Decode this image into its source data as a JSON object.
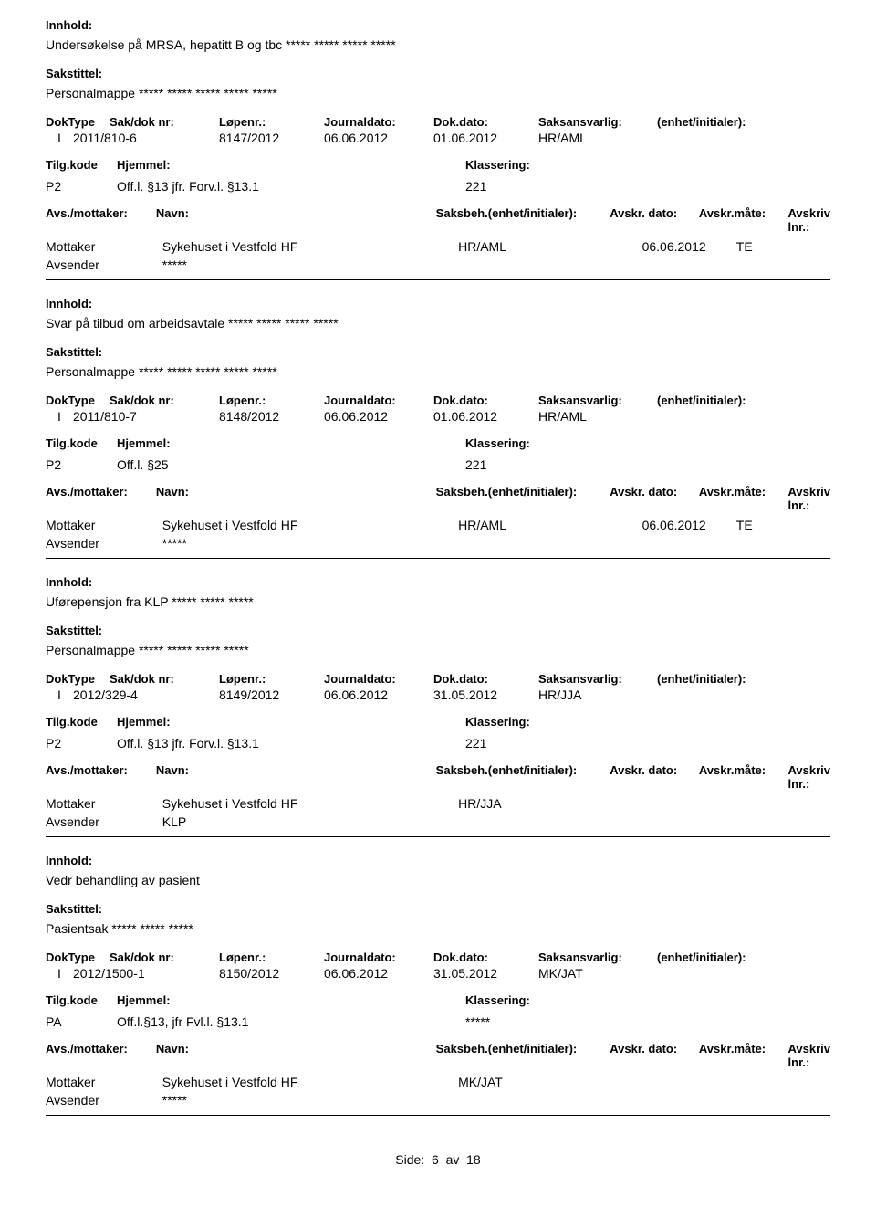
{
  "labels": {
    "innhold": "Innhold:",
    "sakstittel": "Sakstittel:",
    "doktype": "DokType",
    "sakdok": "Sak/dok nr:",
    "lopenr": "Løpenr.:",
    "journaldato": "Journaldato:",
    "dokdato": "Dok.dato:",
    "saksansvarlig": "Saksansvarlig:",
    "enhet": "(enhet/initialer):",
    "tilgkode": "Tilg.kode",
    "hjemmel": "Hjemmel:",
    "klassering": "Klassering:",
    "avsmottaker": "Avs./mottaker:",
    "navn": "Navn:",
    "saksbeh": "Saksbeh.(enhet/initialer):",
    "avskrdato": "Avskr. dato:",
    "avskrmaate": "Avskr.måte:",
    "avskrivlnr": "Avskriv lnr.:",
    "mottaker": "Mottaker",
    "avsender": "Avsender"
  },
  "records": [
    {
      "innhold": "Undersøkelse på MRSA, hepatitt B og tbc ***** ***** ***** *****",
      "sakstittel": "Personalmappe ***** ***** ***** ***** *****",
      "doktype": "I",
      "sakdok": "2011/810-6",
      "lopenr": "8147/2012",
      "journaldato": "06.06.2012",
      "dokdato": "01.06.2012",
      "saksansvarlig": "HR/AML",
      "tilgkode": "P2",
      "hjemmel": "Off.l. §13  jfr. Forv.l. §13.1",
      "klassering": "221",
      "parties": [
        {
          "role": "Mottaker",
          "navn": "Sykehuset i Vestfold HF",
          "saksbeh": "HR/AML",
          "avskrdato": "06.06.2012",
          "avskrmaate": "TE"
        },
        {
          "role": "Avsender",
          "navn": "*****",
          "saksbeh": "",
          "avskrdato": "",
          "avskrmaate": ""
        }
      ]
    },
    {
      "innhold": "Svar på tilbud om arbeidsavtale ***** ***** ***** *****",
      "sakstittel": "Personalmappe ***** ***** ***** ***** *****",
      "doktype": "I",
      "sakdok": "2011/810-7",
      "lopenr": "8148/2012",
      "journaldato": "06.06.2012",
      "dokdato": "01.06.2012",
      "saksansvarlig": "HR/AML",
      "tilgkode": "P2",
      "hjemmel": "Off.l. §25",
      "klassering": "221",
      "parties": [
        {
          "role": "Mottaker",
          "navn": "Sykehuset i Vestfold HF",
          "saksbeh": "HR/AML",
          "avskrdato": "06.06.2012",
          "avskrmaate": "TE"
        },
        {
          "role": "Avsender",
          "navn": "*****",
          "saksbeh": "",
          "avskrdato": "",
          "avskrmaate": ""
        }
      ]
    },
    {
      "innhold": "Uførepensjon fra KLP ***** ***** *****",
      "sakstittel": "Personalmappe ***** ***** ***** *****",
      "doktype": "I",
      "sakdok": "2012/329-4",
      "lopenr": "8149/2012",
      "journaldato": "06.06.2012",
      "dokdato": "31.05.2012",
      "saksansvarlig": "HR/JJA",
      "tilgkode": "P2",
      "hjemmel": "Off.l. §13  jfr. Forv.l. §13.1",
      "klassering": "221",
      "parties": [
        {
          "role": "Mottaker",
          "navn": "Sykehuset i Vestfold HF",
          "saksbeh": "HR/JJA",
          "avskrdato": "",
          "avskrmaate": ""
        },
        {
          "role": "Avsender",
          "navn": "KLP",
          "saksbeh": "",
          "avskrdato": "",
          "avskrmaate": ""
        }
      ]
    },
    {
      "innhold": "Vedr behandling av pasient",
      "sakstittel": "Pasientsak ***** ***** *****",
      "doktype": "I",
      "sakdok": "2012/1500-1",
      "lopenr": "8150/2012",
      "journaldato": "06.06.2012",
      "dokdato": "31.05.2012",
      "saksansvarlig": "MK/JAT",
      "tilgkode": "PA",
      "hjemmel": "Off.l.§13, jfr Fvl.l. §13.1",
      "klassering": "*****",
      "parties": [
        {
          "role": "Mottaker",
          "navn": "Sykehuset i Vestfold HF",
          "saksbeh": "MK/JAT",
          "avskrdato": "",
          "avskrmaate": ""
        },
        {
          "role": "Avsender",
          "navn": "*****",
          "saksbeh": "",
          "avskrdato": "",
          "avskrmaate": ""
        }
      ]
    }
  ],
  "footer": {
    "side_label": "Side:",
    "page": "6",
    "av": "av",
    "total": "18"
  }
}
